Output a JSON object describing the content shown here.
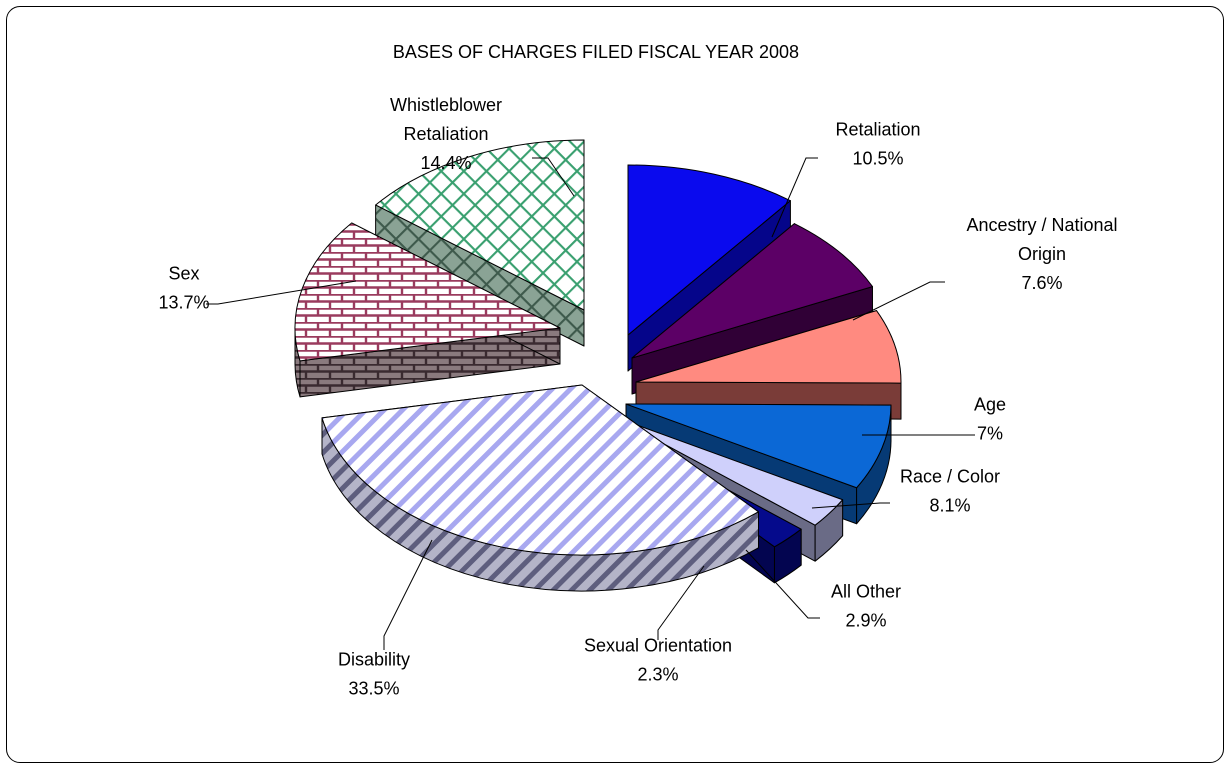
{
  "chart_data": {
    "type": "pie",
    "title": "BASES OF CHARGES FILED FISCAL YEAR 2008",
    "slices": [
      {
        "label": "Retaliation",
        "label_lines": [
          "Retaliation"
        ],
        "value": 10.5,
        "value_label": "10.5%",
        "color": "#0a0aee",
        "side_color": "#05058a",
        "pattern": "solid"
      },
      {
        "label": "Ancestry / National Origin",
        "label_lines": [
          "Ancestry / National",
          "Origin"
        ],
        "value": 7.6,
        "value_label": "7.6%",
        "color": "#5c0066",
        "side_color": "#300036",
        "pattern": "solid"
      },
      {
        "label": "Age",
        "label_lines": [
          "Age"
        ],
        "value": 7.0,
        "value_label": "7%",
        "color": "#ff8a80",
        "side_color": "#7a3c38",
        "pattern": "solid"
      },
      {
        "label": "Race / Color",
        "label_lines": [
          "Race / Color"
        ],
        "value": 8.1,
        "value_label": "8.1%",
        "color": "#0b68d6",
        "side_color": "#063a75",
        "pattern": "solid"
      },
      {
        "label": "All Other",
        "label_lines": [
          "All Other"
        ],
        "value": 2.9,
        "value_label": "2.9%",
        "color": "#cfd0fb",
        "side_color": "#6a6b86",
        "pattern": "solid"
      },
      {
        "label": "Sexual Orientation",
        "label_lines": [
          "Sexual Orientation"
        ],
        "value": 2.3,
        "value_label": "2.3%",
        "color": "#050a8c",
        "side_color": "#030550",
        "pattern": "solid"
      },
      {
        "label": "Disability",
        "label_lines": [
          "Disability"
        ],
        "value": 33.5,
        "value_label": "33.5%",
        "color": "#a8a8f0",
        "side_color": "#6e6e90",
        "pattern": "stripes"
      },
      {
        "label": "Sex",
        "label_lines": [
          "Sex"
        ],
        "value": 13.7,
        "value_label": "13.7%",
        "color": "#9a3b5e",
        "side_color": "#6b5a5e",
        "pattern": "bricks"
      },
      {
        "label": "Whistleblower Retaliation",
        "label_lines": [
          "Whistleblower",
          "Retaliation"
        ],
        "value": 14.4,
        "value_label": "14.4%",
        "color": "#3aa070",
        "side_color": "#5f7a6c",
        "pattern": "lattice"
      }
    ]
  }
}
